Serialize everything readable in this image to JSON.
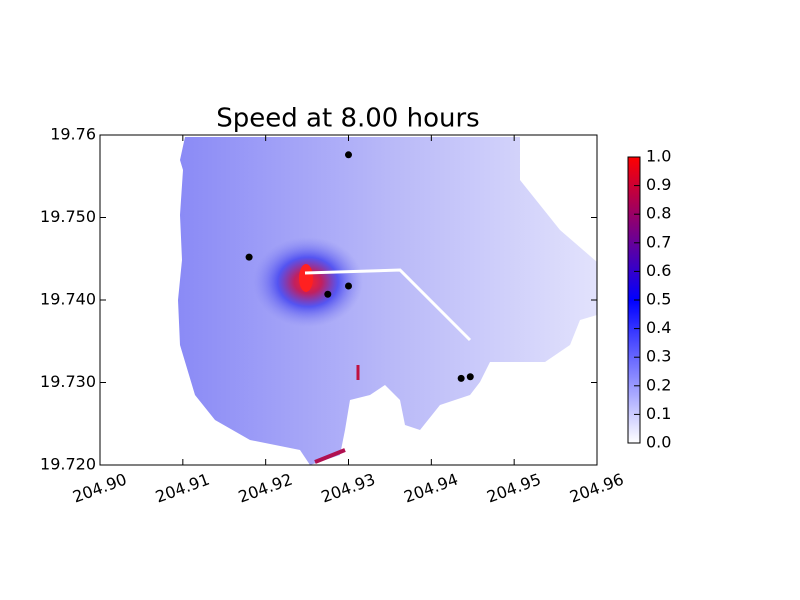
{
  "chart_data": {
    "type": "scatter",
    "title": "Speed at 8.00 hours",
    "x": [
      204.93,
      204.918,
      204.9275,
      204.93,
      204.9436,
      204.9447
    ],
    "y": [
      19.7576,
      19.7452,
      19.7407,
      19.7417,
      19.7305,
      19.7307
    ],
    "color": "#000000",
    "xlim": [
      204.9,
      204.96
    ],
    "xticks": [
      {
        "value": 204.9,
        "label": "204.90"
      },
      {
        "value": 204.91,
        "label": "204.91"
      },
      {
        "value": 204.92,
        "label": "204.92"
      },
      {
        "value": 204.93,
        "label": "204.93"
      },
      {
        "value": 204.94,
        "label": "204.94"
      },
      {
        "value": 204.95,
        "label": "204.95"
      },
      {
        "value": 204.96,
        "label": "204.96"
      }
    ],
    "ylim": [
      19.72,
      19.76
    ],
    "yticks": [
      {
        "value": 19.72,
        "label": "19.720"
      },
      {
        "value": 19.73,
        "label": "19.730"
      },
      {
        "value": 19.74,
        "label": "19.740"
      },
      {
        "value": 19.75,
        "label": "19.750"
      },
      19.76
    ],
    "colorbar": {
      "lim": [
        0,
        1
      ],
      "colors": [
        "#ffffff",
        "#0000ff",
        "#ff0000"
      ],
      "ticks": [
        {
          "value": 0,
          "label": "0.0"
        },
        {
          "value": 0.1,
          "label": "0.1"
        },
        {
          "value": 0.2,
          "label": "0.2"
        },
        {
          "value": 0.3,
          "label": "0.3"
        },
        {
          "value": 0.4,
          "label": "0.4"
        },
        {
          "value": 0.5,
          "label": "0.5"
        },
        {
          "value": 0.6,
          "label": "0.6"
        },
        {
          "value": 0.7,
          "label": "0.7"
        },
        {
          "value": 0.8,
          "label": "0.8"
        },
        {
          "value": 0.9,
          "label": "0.9"
        },
        {
          "value": 1,
          "label": "1.0"
        }
      ]
    }
  }
}
